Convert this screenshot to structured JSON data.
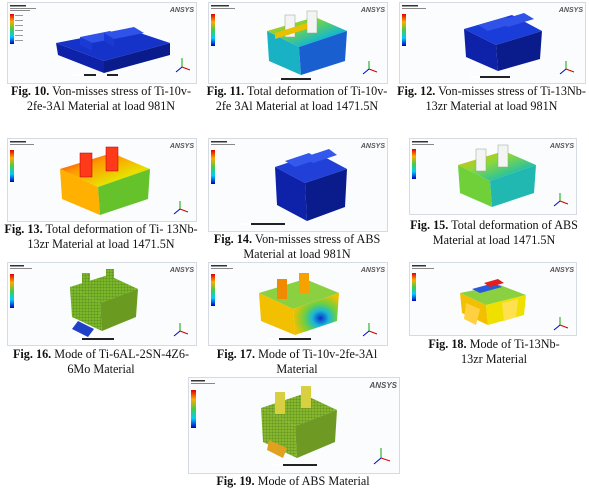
{
  "brand": "ANSYS",
  "figures": [
    {
      "num": "Fig. 10.",
      "text": "Von-misses stress of Ti-10v-2fe-3Al Material at load 981N"
    },
    {
      "num": "Fig. 11.",
      "text": "Total deformation of Ti-10v-2fe 3Al Material at load 1471.5N"
    },
    {
      "num": "Fig. 12.",
      "text": "Von-misses stress of Ti-13Nb-13zr Material at load 981N"
    },
    {
      "num": "Fig. 13.",
      "text": "Total deformation of Ti- 13Nb-13zr Material at load 1471.5N"
    },
    {
      "num": "Fig. 14.",
      "text": "Von-misses stress of ABS Material at load 981N"
    },
    {
      "num": "Fig. 15.",
      "text": "Total deformation of ABS Material at load 1471.5N"
    },
    {
      "num": "Fig. 16.",
      "text": "Mode of Ti-6AL-2SN-4Z6-6Mo Material"
    },
    {
      "num": "Fig. 17.",
      "text": "Mode of Ti-10v-2fe-3Al Material"
    },
    {
      "num": "Fig. 18.",
      "text": "Mode of Ti-13Nb-13zr Material"
    },
    {
      "num": "Fig. 19.",
      "text": "Mode of ABS Material"
    }
  ]
}
